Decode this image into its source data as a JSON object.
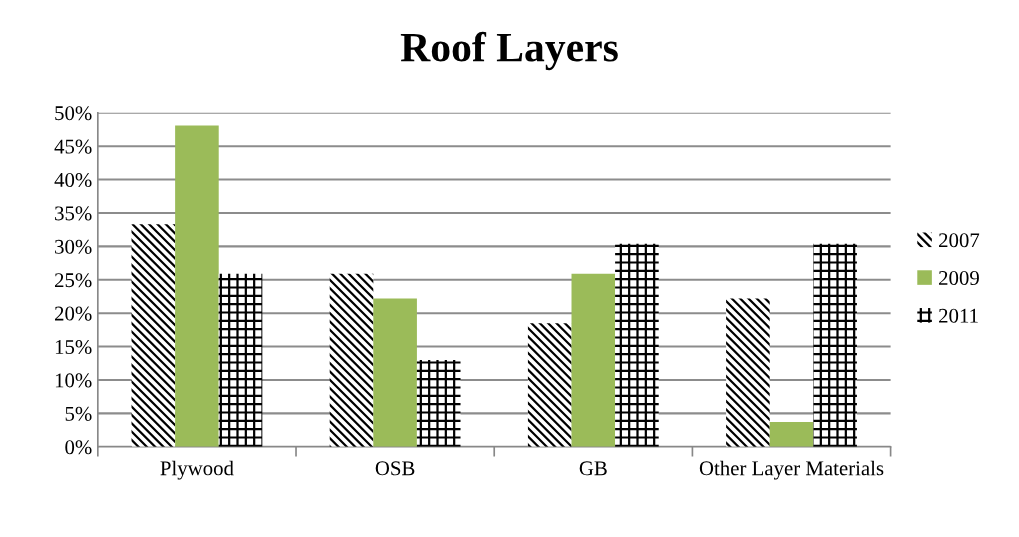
{
  "chart_data": {
    "type": "bar",
    "title": "Roof Layers",
    "categories": [
      "Plywood",
      "OSB",
      "GB",
      "Other Layer Materials"
    ],
    "series": [
      {
        "name": "2007",
        "color": "#000000",
        "values": [
          33.3,
          25.9,
          18.5,
          22.2
        ]
      },
      {
        "name": "2009",
        "color": "#9bbb59",
        "values": [
          48.1,
          22.2,
          25.9,
          3.7
        ]
      },
      {
        "name": "2011",
        "color": "#000000",
        "values": [
          25.9,
          13.0,
          30.4,
          30.4
        ]
      }
    ],
    "ylim": [
      0,
      50
    ],
    "yticks": [
      {
        "value": 0,
        "label": "0%"
      },
      {
        "value": 5,
        "label": "5%"
      },
      {
        "value": 10,
        "label": "10%"
      },
      {
        "value": 15,
        "label": "15%"
      },
      {
        "value": 20,
        "label": "20%"
      },
      {
        "value": 25,
        "label": "25%"
      },
      {
        "value": 30,
        "label": "30%"
      },
      {
        "value": 35,
        "label": "35%"
      },
      {
        "value": 40,
        "label": "40%"
      },
      {
        "value": 45,
        "label": "45%"
      },
      {
        "value": 50,
        "label": "50%"
      }
    ],
    "grid": "y",
    "legend": "right"
  }
}
